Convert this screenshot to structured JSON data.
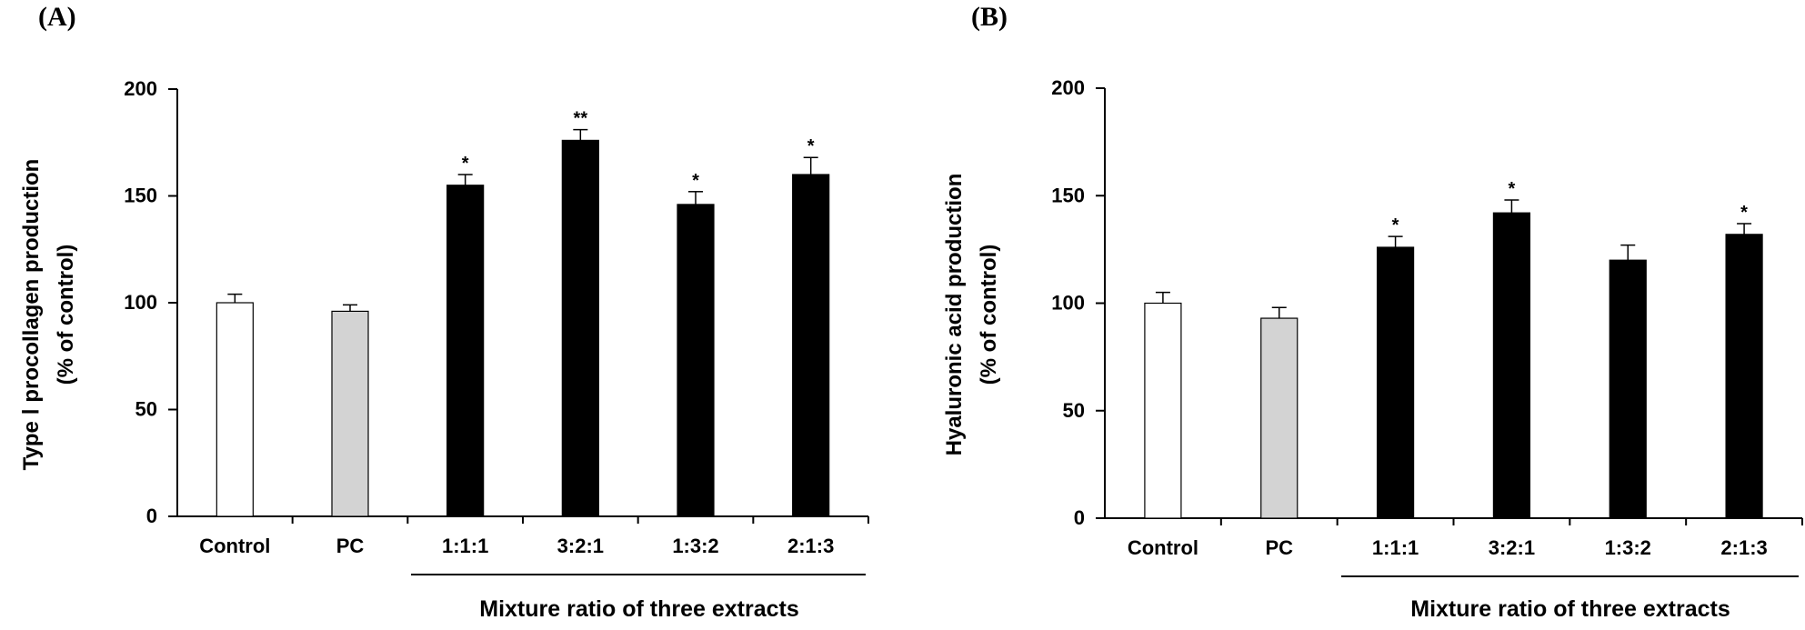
{
  "chart_data": [
    {
      "type": "bar",
      "panel": "(A)",
      "ylabel_line1": "Type Ⅰ procollagen production",
      "ylabel_line2": "(% of control)",
      "xlabel_group": "Mixture ratio of three extracts",
      "ylim": [
        0,
        200
      ],
      "yticks": [
        "0",
        "50",
        "100",
        "150",
        "200"
      ],
      "categories": [
        "Control",
        "PC",
        "1:1:1",
        "3:2:1",
        "1:3:2",
        "2:1:3"
      ],
      "values": [
        100,
        96,
        155,
        176,
        146,
        160
      ],
      "errors": [
        4,
        3,
        5,
        5,
        6,
        8
      ],
      "significance": [
        "",
        "",
        "*",
        "**",
        "*",
        "*"
      ],
      "bar_colors": [
        "#ffffff",
        "#d3d3d3",
        "#000000",
        "#000000",
        "#000000",
        "#000000"
      ]
    },
    {
      "type": "bar",
      "panel": "(B)",
      "ylabel_line1": "Hyaluronic acid production",
      "ylabel_line2": "(% of control)",
      "xlabel_group": "Mixture ratio of three extracts",
      "ylim": [
        0,
        200
      ],
      "yticks": [
        "0",
        "50",
        "100",
        "150",
        "200"
      ],
      "categories": [
        "Control",
        "PC",
        "1:1:1",
        "3:2:1",
        "1:3:2",
        "2:1:3"
      ],
      "values": [
        100,
        93,
        126,
        142,
        120,
        132
      ],
      "errors": [
        5,
        5,
        5,
        6,
        7,
        5
      ],
      "significance": [
        "",
        "",
        "*",
        "*",
        "",
        "*"
      ],
      "bar_colors": [
        "#ffffff",
        "#d3d3d3",
        "#000000",
        "#000000",
        "#000000",
        "#000000"
      ]
    }
  ]
}
